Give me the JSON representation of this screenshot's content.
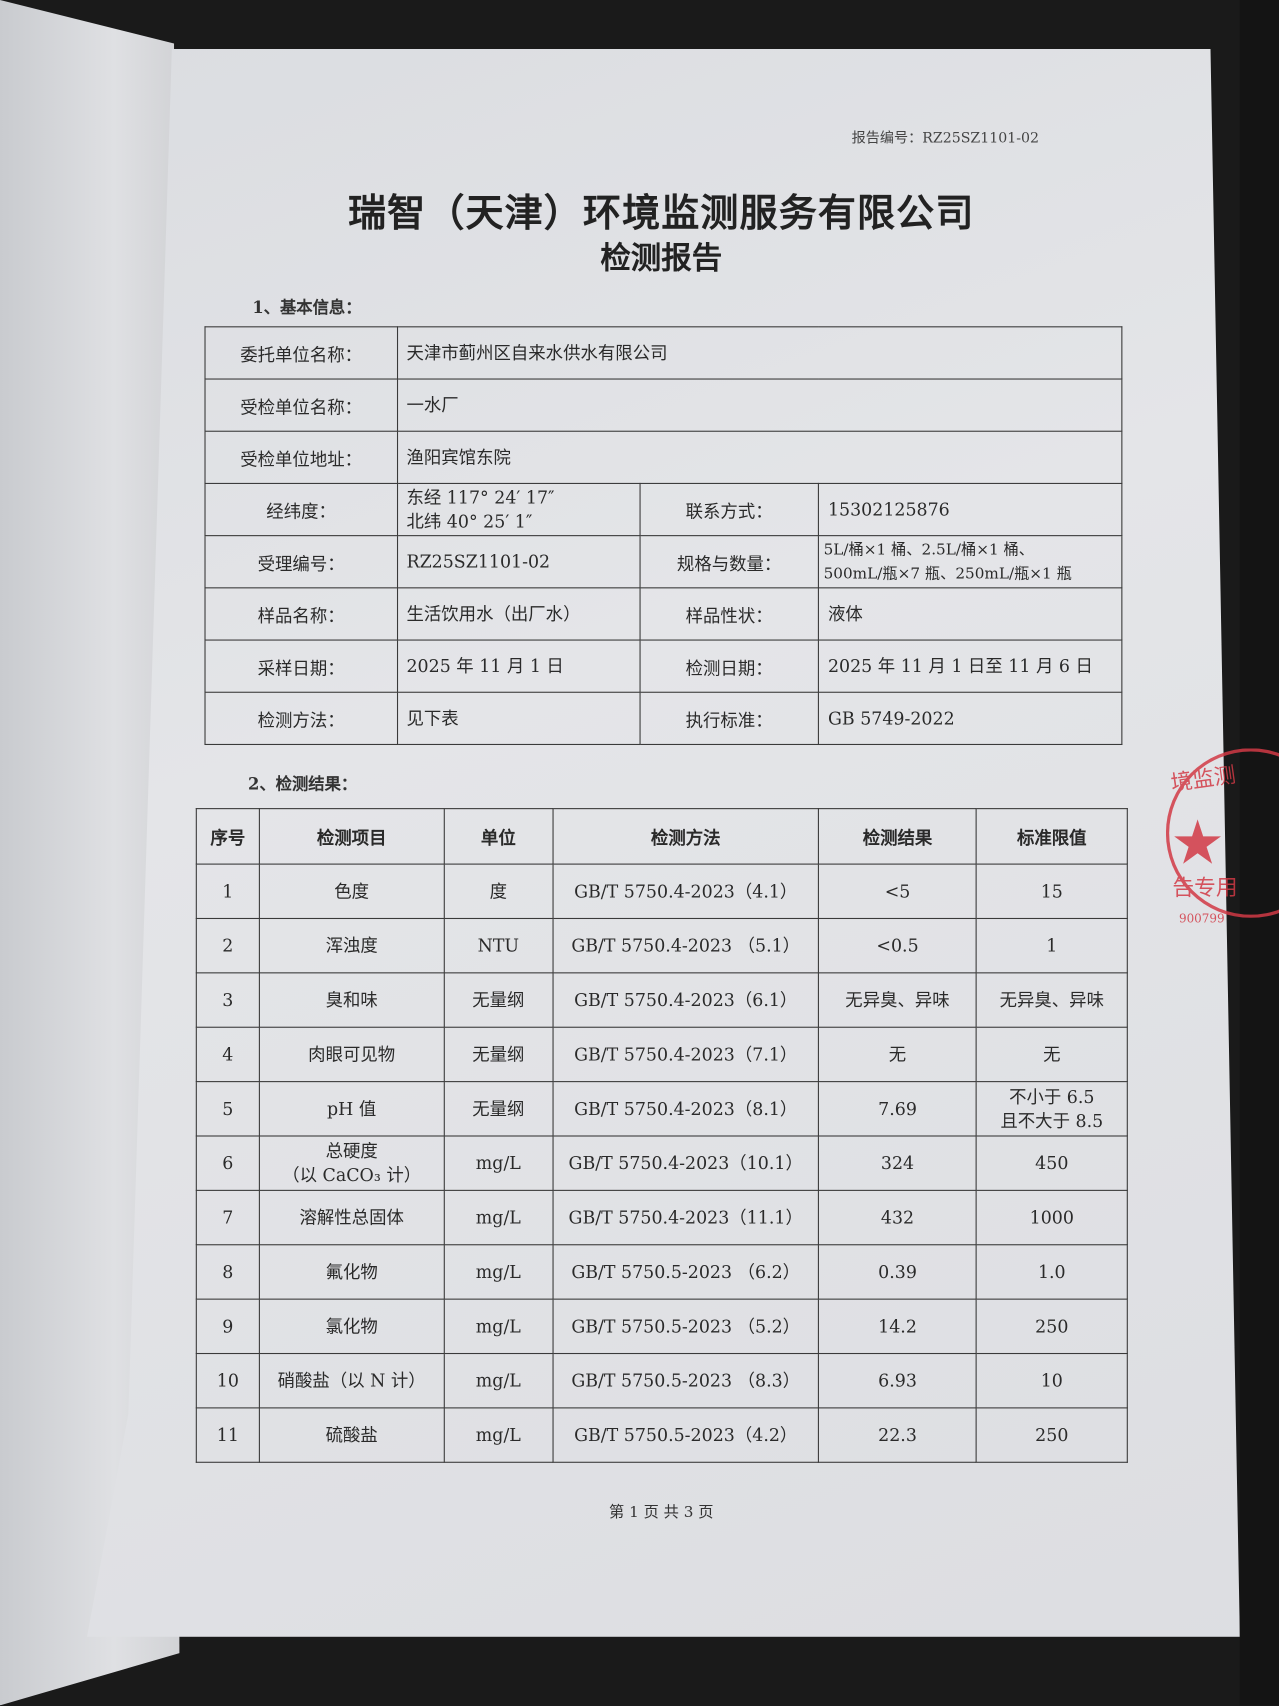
{
  "report_no": "报告编号：RZ25SZ1101-02",
  "title": "瑞智（天津）环境监测服务有限公司",
  "subtitle": "检测报告",
  "section1": "1、基本信息：",
  "basic": {
    "client_label": "委托单位名称：",
    "client": "天津市蓟州区自来水供水有限公司",
    "inspected_label": "受检单位名称：",
    "inspected": "一水厂",
    "address_label": "受检单位地址：",
    "address": "渔阳宾馆东院",
    "coords_label": "经纬度：",
    "lon": "东经 117° 24′ 17″",
    "lat": "北纬 40° 25′ 1″",
    "contact_label": "联系方式：",
    "contact": "15302125876",
    "accept_label": "受理编号：",
    "accept": "RZ25SZ1101-02",
    "spec_label": "规格与数量：",
    "spec1": "5L/桶×1 桶、2.5L/桶×1 桶、",
    "spec2": "500mL/瓶×7 瓶、250mL/瓶×1 瓶",
    "sample_label": "样品名称：",
    "sample": "生活饮用水（出厂水）",
    "nature_label": "样品性状：",
    "nature": "液体",
    "sampling_date_label": "采样日期：",
    "sampling_date": "2025 年 11 月 1 日",
    "test_date_label": "检测日期：",
    "test_date": "2025 年 11 月 1 日至 11 月 6 日",
    "method_label": "检测方法：",
    "method": "见下表",
    "standard_label": "执行标准：",
    "standard": "GB 5749-2022"
  },
  "section2": "2、检测结果：",
  "results": {
    "headers": [
      "序号",
      "检测项目",
      "单位",
      "检测方法",
      "检测结果",
      "标准限值"
    ],
    "rows": [
      [
        "1",
        "色度",
        "度",
        "GB/T 5750.4-2023（4.1）",
        "<5",
        "15"
      ],
      [
        "2",
        "浑浊度",
        "NTU",
        "GB/T 5750.4-2023 （5.1）",
        "<0.5",
        "1"
      ],
      [
        "3",
        "臭和味",
        "无量纲",
        "GB/T 5750.4-2023（6.1）",
        "无异臭、异味",
        "无异臭、异味"
      ],
      [
        "4",
        "肉眼可见物",
        "无量纲",
        "GB/T 5750.4-2023（7.1）",
        "无",
        "无"
      ],
      [
        "5",
        "pH 值",
        "无量纲",
        "GB/T 5750.4-2023（8.1）",
        "7.69",
        "不小于 6.5\n且不大于 8.5"
      ],
      [
        "6",
        "总硬度\n（以 CaCO₃ 计）",
        "mg/L",
        "GB/T 5750.4-2023（10.1）",
        "324",
        "450"
      ],
      [
        "7",
        "溶解性总固体",
        "mg/L",
        "GB/T 5750.4-2023（11.1）",
        "432",
        "1000"
      ],
      [
        "8",
        "氟化物",
        "mg/L",
        "GB/T 5750.5-2023 （6.2）",
        "0.39",
        "1.0"
      ],
      [
        "9",
        "氯化物",
        "mg/L",
        "GB/T 5750.5-2023 （5.2）",
        "14.2",
        "250"
      ],
      [
        "10",
        "硝酸盐（以 N 计）",
        "mg/L",
        "GB/T 5750.5-2023 （8.3）",
        "6.93",
        "10"
      ],
      [
        "11",
        "硫酸盐",
        "mg/L",
        "GB/T 5750.5-2023（4.2）",
        "22.3",
        "250"
      ]
    ]
  },
  "footer": "第 1 页 共 3 页",
  "stamp": {
    "text_top": "境监测",
    "text_bottom": "告专用",
    "code": "900799",
    "color": "#d23a46"
  }
}
